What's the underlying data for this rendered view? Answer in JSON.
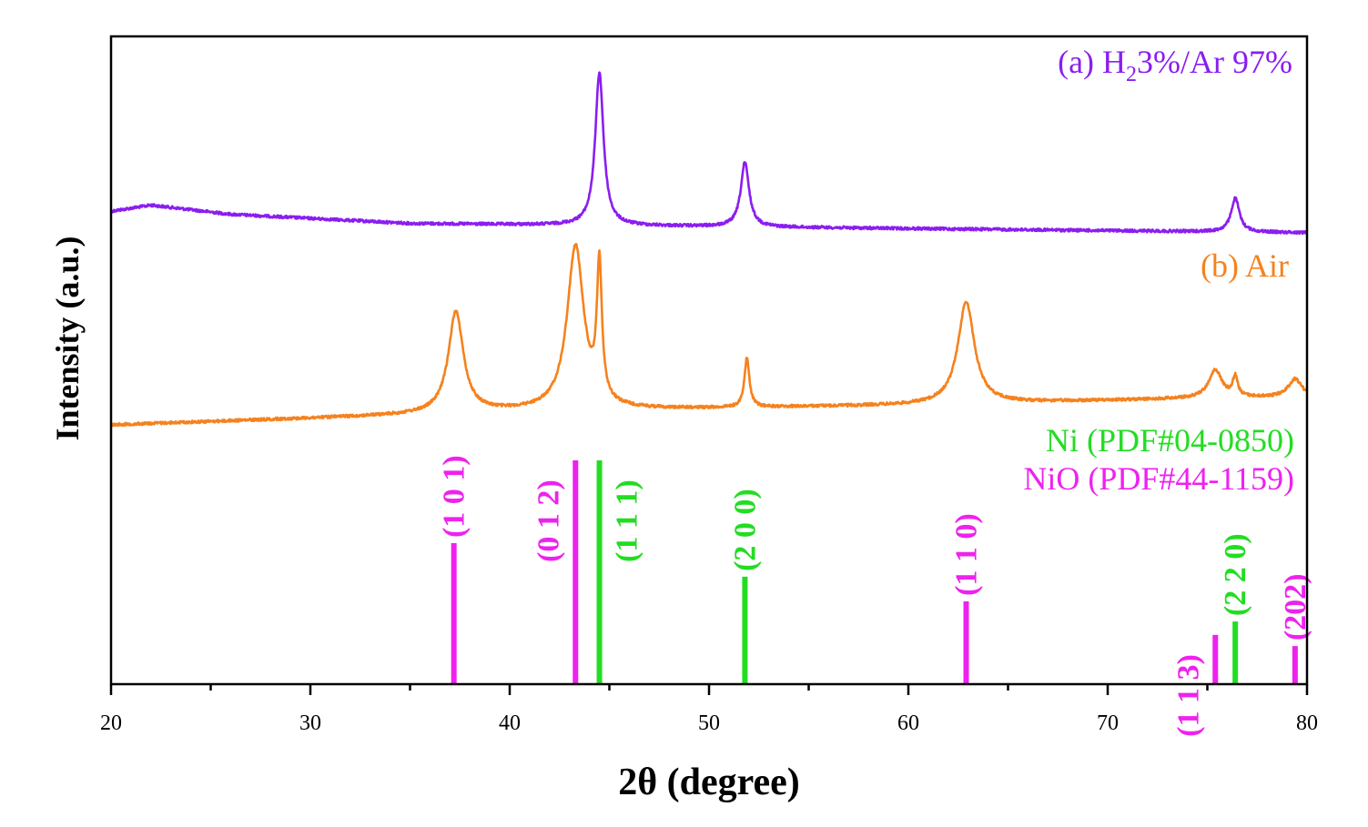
{
  "chart_data": {
    "type": "line",
    "title": "",
    "xlabel": "2θ (degree)",
    "ylabel": "Intensity (a.u.)",
    "xlim": [
      20,
      80
    ],
    "xticks": [
      20,
      30,
      40,
      50,
      60,
      70,
      80
    ],
    "xtick_labels": [
      "20",
      "30",
      "40",
      "50",
      "60",
      "70",
      "80"
    ],
    "yticks_shown": false,
    "colors": {
      "a": "#8a1ef0",
      "b": "#f5821e",
      "ni": "#22dd22",
      "nio": "#ee22ee"
    },
    "series": [
      {
        "id": "a",
        "name": "(a) H2 3%/Ar 97%",
        "label_prefix": "(a) H",
        "label_sub": "2",
        "label_suffix": "3%/Ar 97%",
        "baseline": [
          [
            20,
            0.1
          ],
          [
            22,
            0.14
          ],
          [
            26,
            0.08
          ],
          [
            35,
            0.02
          ],
          [
            50,
            0.0
          ],
          [
            80,
            -0.04
          ]
        ],
        "peaks": [
          {
            "x": 44.5,
            "height": 1.0,
            "width": 0.25
          },
          {
            "x": 51.8,
            "height": 0.42,
            "width": 0.25
          },
          {
            "x": 76.4,
            "height": 0.22,
            "width": 0.25
          }
        ]
      },
      {
        "id": "b",
        "name": "(b) Air",
        "label": "(b) Air",
        "baseline": [
          [
            20,
            0.0
          ],
          [
            30,
            0.04
          ],
          [
            40,
            0.08
          ],
          [
            60,
            0.12
          ],
          [
            74,
            0.16
          ],
          [
            80,
            0.17
          ]
        ],
        "peaks": [
          {
            "x": 37.3,
            "height": 0.62,
            "width": 0.45
          },
          {
            "x": 43.3,
            "height": 1.0,
            "width": 0.5
          },
          {
            "x": 44.5,
            "height": 0.82,
            "width": 0.15
          },
          {
            "x": 51.9,
            "height": 0.3,
            "width": 0.15
          },
          {
            "x": 62.9,
            "height": 0.62,
            "width": 0.5
          },
          {
            "x": 75.4,
            "height": 0.17,
            "width": 0.4
          },
          {
            "x": 76.4,
            "height": 0.12,
            "width": 0.15
          },
          {
            "x": 79.4,
            "height": 0.11,
            "width": 0.4
          }
        ]
      }
    ],
    "references": [
      {
        "name": "Ni (PDF#04-0850)",
        "color_key": "ni",
        "lines": [
          {
            "x": 44.5,
            "intensity": 100,
            "hkl": "(1 1 1)"
          },
          {
            "x": 51.8,
            "intensity": 48,
            "hkl": "(2 0 0)"
          },
          {
            "x": 76.4,
            "intensity": 28,
            "hkl": "(2 2 0)"
          }
        ]
      },
      {
        "name": "NiO (PDF#44-1159)",
        "color_key": "nio",
        "lines": [
          {
            "x": 37.2,
            "intensity": 63,
            "hkl": "(1 0 1)"
          },
          {
            "x": 43.3,
            "intensity": 100,
            "hkl": "(0 1 2)"
          },
          {
            "x": 62.9,
            "intensity": 37,
            "hkl": "(1 1 0)"
          },
          {
            "x": 75.4,
            "intensity": 22,
            "hkl": "(1 1 3)"
          },
          {
            "x": 79.4,
            "intensity": 17,
            "hkl": "(202)"
          }
        ]
      }
    ]
  }
}
